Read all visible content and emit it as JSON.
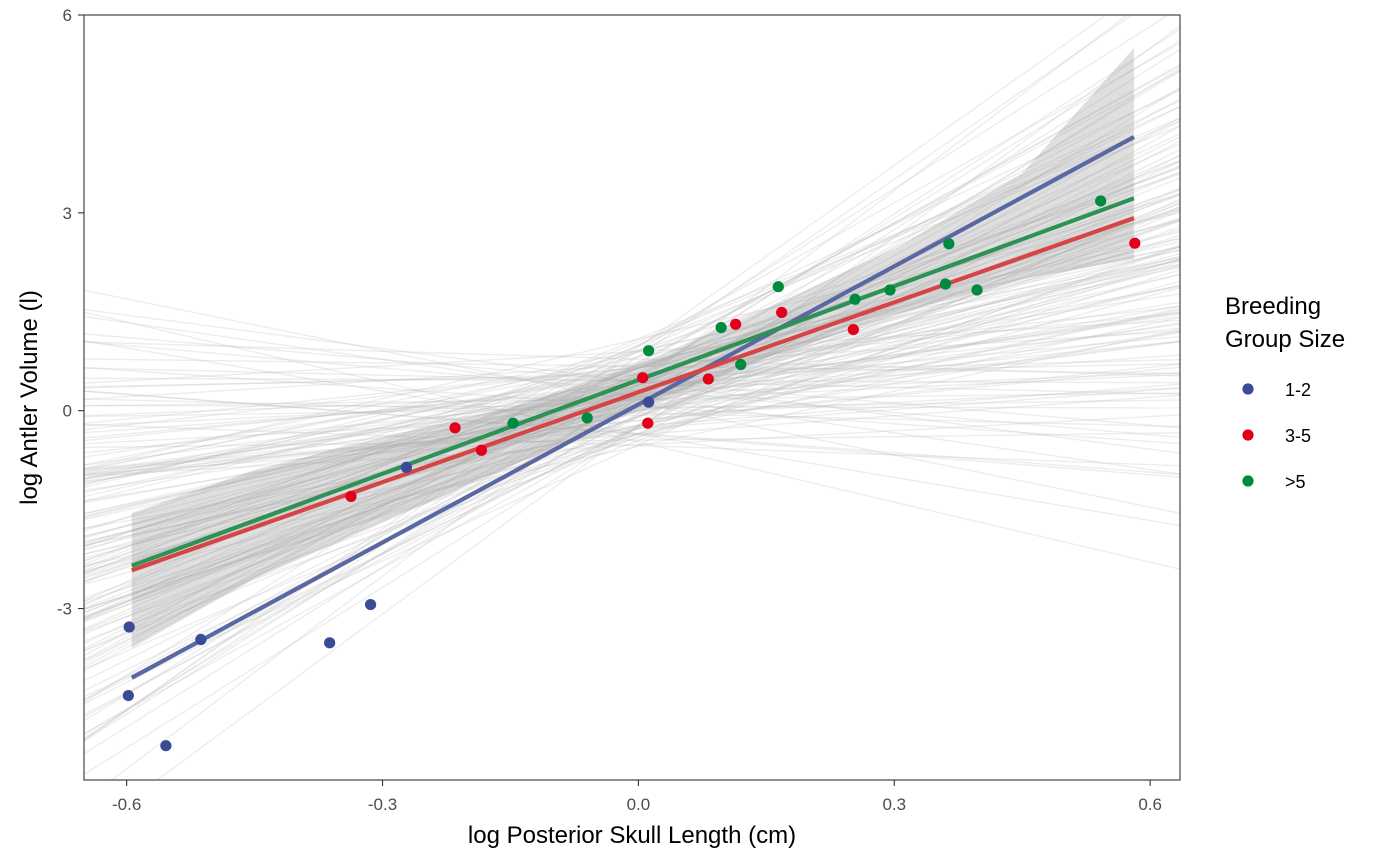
{
  "chart_data": {
    "type": "scatter",
    "xlabel": "log Posterior Skull Length (cm)",
    "ylabel": "log Antler Volume (l)",
    "xlim": [
      -0.65,
      0.635
    ],
    "ylim": [
      -5.6,
      6.0
    ],
    "xticks": [
      -0.6,
      -0.3,
      0.0,
      0.3,
      0.6
    ],
    "xtick_labels": [
      "-0.6",
      "-0.3",
      "0.0",
      "0.3",
      "0.6"
    ],
    "yticks": [
      -3,
      0,
      3,
      6
    ],
    "ytick_labels": [
      "-3",
      "0",
      "3",
      "6"
    ],
    "grid": false,
    "legend": {
      "title": [
        "Breeding",
        "Group Size"
      ],
      "placement": "right"
    },
    "series": [
      {
        "name": "1-2",
        "color": "#3a4a97",
        "line_color": "#5a67a3",
        "fit": {
          "x": [
            -0.594,
            0.581
          ],
          "y": [
            -4.05,
            4.15
          ]
        },
        "points": [
          [
            -0.597,
            -3.28
          ],
          [
            -0.598,
            -4.32
          ],
          [
            -0.554,
            -5.08
          ],
          [
            -0.513,
            -3.47
          ],
          [
            -0.362,
            -3.52
          ],
          [
            -0.314,
            -2.94
          ],
          [
            -0.272,
            -0.86
          ],
          [
            0.012,
            0.13
          ]
        ]
      },
      {
        "name": "3-5",
        "color": "#e3001b",
        "line_color": "#d64545",
        "fit": {
          "x": [
            -0.594,
            0.581
          ],
          "y": [
            -2.42,
            2.92
          ]
        },
        "points": [
          [
            -0.337,
            -1.3
          ],
          [
            -0.215,
            -0.26
          ],
          [
            -0.184,
            -0.6
          ],
          [
            0.005,
            0.5
          ],
          [
            0.011,
            -0.19
          ],
          [
            0.082,
            0.48
          ],
          [
            0.114,
            1.31
          ],
          [
            0.168,
            1.49
          ],
          [
            0.252,
            1.23
          ],
          [
            0.582,
            2.54
          ]
        ]
      },
      {
        "name": ">5",
        "color": "#008a3e",
        "line_color": "#2e9155",
        "fit": {
          "x": [
            -0.594,
            0.581
          ],
          "y": [
            -2.35,
            3.22
          ]
        },
        "points": [
          [
            -0.147,
            -0.19
          ],
          [
            -0.06,
            -0.11
          ],
          [
            0.012,
            0.91
          ],
          [
            0.097,
            1.26
          ],
          [
            0.12,
            0.7
          ],
          [
            0.164,
            1.88
          ],
          [
            0.254,
            1.69
          ],
          [
            0.295,
            1.83
          ],
          [
            0.36,
            1.92
          ],
          [
            0.364,
            2.53
          ],
          [
            0.397,
            1.83
          ],
          [
            0.542,
            3.18
          ]
        ]
      }
    ],
    "posterior_lines": {
      "count": 160,
      "color": "#bdbdbd"
    },
    "ribbons": [
      {
        "x": [
          -0.594,
          -0.45,
          -0.3,
          -0.15,
          0.0,
          0.15,
          0.3,
          0.45,
          0.581
        ],
        "ylo": [
          -3.6,
          -2.55,
          -1.7,
          -0.85,
          0.05,
          0.8,
          1.45,
          2.0,
          2.3
        ],
        "yhi": [
          -1.55,
          -0.9,
          -0.4,
          0.05,
          0.7,
          1.55,
          2.45,
          3.6,
          5.5
        ]
      }
    ]
  }
}
